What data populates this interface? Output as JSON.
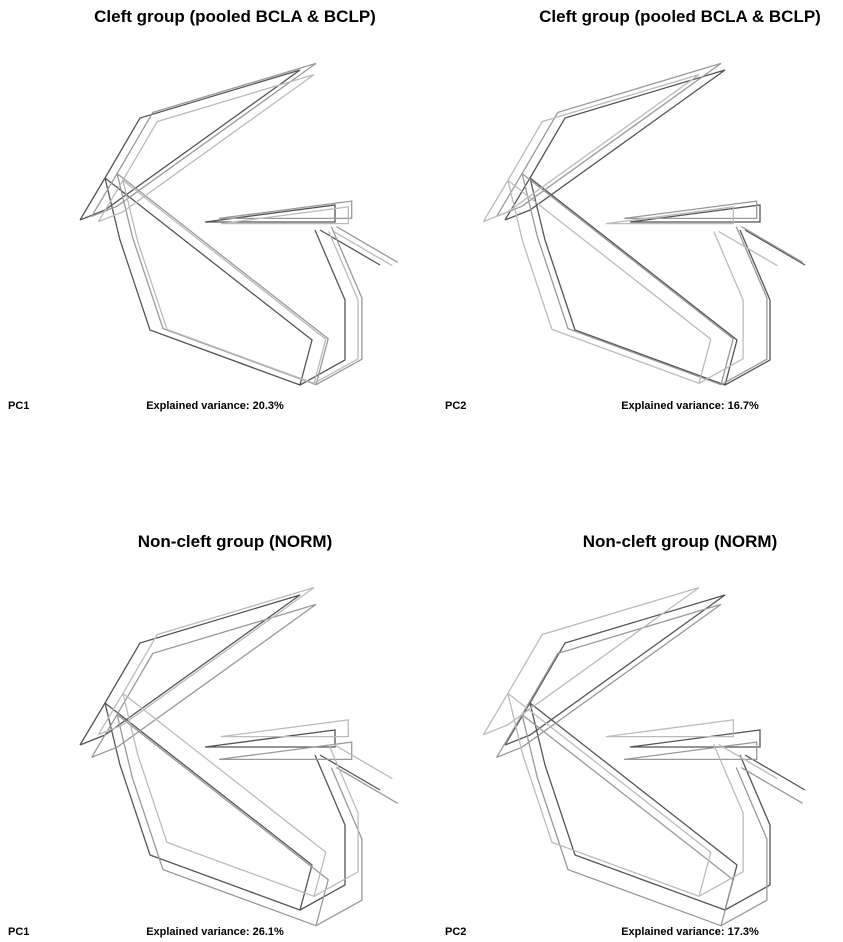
{
  "panels": [
    {
      "title": "Cleft group (pooled BCLA & BCLP)",
      "pc": "PC1",
      "variance": "Explained variance: 20.3%"
    },
    {
      "title": "Cleft group (pooled BCLA & BCLP)",
      "pc": "PC2",
      "variance": "Explained variance: 16.7%"
    },
    {
      "title": "Non-cleft group (NORM)",
      "pc": "PC1",
      "variance": "Explained variance: 26.1%"
    },
    {
      "title": "Non-cleft group (NORM)",
      "pc": "PC2",
      "variance": "Explained variance: 17.3%"
    }
  ]
}
